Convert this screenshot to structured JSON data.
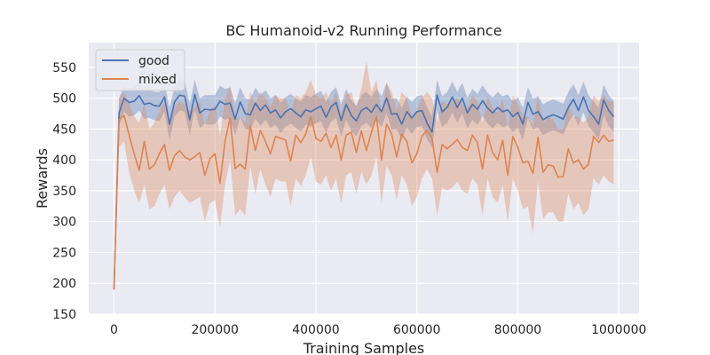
{
  "chart_data": {
    "type": "line",
    "title": "BC Humanoid-v2 Running Performance",
    "xlabel": "Training Samples",
    "ylabel": "Rewards",
    "xlim": [
      -50000,
      1040000
    ],
    "ylim": [
      150,
      590
    ],
    "xticks": [
      0,
      200000,
      400000,
      600000,
      800000,
      1000000
    ],
    "xtick_labels": [
      "0",
      "200000",
      "400000",
      "600000",
      "800000",
      "1000000"
    ],
    "yticks": [
      150,
      200,
      250,
      300,
      350,
      400,
      450,
      500,
      550
    ],
    "ytick_labels": [
      "150",
      "200",
      "250",
      "300",
      "350",
      "400",
      "450",
      "500",
      "550"
    ],
    "grid": true,
    "legend_position": "top-left",
    "x": [
      0,
      10000,
      20000,
      30000,
      40000,
      50000,
      60000,
      70000,
      80000,
      90000,
      100000,
      110000,
      120000,
      130000,
      140000,
      150000,
      160000,
      170000,
      180000,
      190000,
      200000,
      210000,
      220000,
      230000,
      240000,
      250000,
      260000,
      270000,
      280000,
      290000,
      300000,
      310000,
      320000,
      330000,
      340000,
      350000,
      360000,
      370000,
      380000,
      390000,
      400000,
      410000,
      420000,
      430000,
      440000,
      450000,
      460000,
      470000,
      480000,
      490000,
      500000,
      510000,
      520000,
      530000,
      540000,
      550000,
      560000,
      570000,
      580000,
      590000,
      600000,
      610000,
      620000,
      630000,
      640000,
      650000,
      660000,
      670000,
      680000,
      690000,
      700000,
      710000,
      720000,
      730000,
      740000,
      750000,
      760000,
      770000,
      780000,
      790000,
      800000,
      810000,
      820000,
      830000,
      840000,
      850000,
      860000,
      870000,
      880000,
      890000,
      900000,
      910000,
      920000,
      930000,
      940000,
      950000,
      960000,
      970000,
      980000,
      990000
    ],
    "series": [
      {
        "name": "good",
        "color": "#4c72b0",
        "values": [
          190,
          476,
          500,
          493,
          495,
          504,
          490,
          492,
          488,
          487,
          502,
          458,
          494,
          505,
          503,
          465,
          506,
          476,
          482,
          481,
          482,
          495,
          490,
          492,
          466,
          494,
          475,
          473,
          492,
          480,
          489,
          476,
          481,
          468,
          478,
          483,
          476,
          470,
          481,
          478,
          483,
          487,
          469,
          486,
          493,
          464,
          490,
          472,
          463,
          480,
          485,
          477,
          490,
          478,
          500,
          474,
          475,
          458,
          478,
          468,
          478,
          480,
          460,
          445,
          505,
          478,
          485,
          502,
          485,
          500,
          476,
          490,
          482,
          496,
          484,
          476,
          485,
          478,
          481,
          470,
          477,
          458,
          493,
          474,
          478,
          465,
          470,
          473,
          470,
          466,
          485,
          498,
          480,
          502,
          480,
          470,
          458,
          497,
          480,
          470
        ],
        "upper": [
          200,
          500,
          520,
          515,
          518,
          526,
          512,
          515,
          510,
          510,
          525,
          485,
          518,
          530,
          528,
          492,
          530,
          500,
          505,
          505,
          505,
          520,
          515,
          517,
          492,
          518,
          500,
          498,
          517,
          505,
          513,
          500,
          505,
          493,
          502,
          507,
          500,
          495,
          505,
          502,
          507,
          512,
          494,
          510,
          518,
          490,
          515,
          497,
          488,
          505,
          510,
          502,
          515,
          503,
          525,
          499,
          500,
          484,
          503,
          494,
          503,
          505,
          486,
          470,
          530,
          503,
          510,
          527,
          510,
          525,
          501,
          515,
          507,
          521,
          509,
          501,
          510,
          503,
          506,
          495,
          502,
          484,
          518,
          499,
          503,
          490,
          495,
          498,
          495,
          491,
          510,
          523,
          505,
          527,
          505,
          495,
          484,
          522,
          505,
          495
        ],
        "lower": [
          185,
          455,
          478,
          470,
          472,
          480,
          466,
          468,
          464,
          463,
          478,
          432,
          470,
          480,
          478,
          440,
          482,
          452,
          458,
          457,
          458,
          470,
          465,
          467,
          440,
          470,
          450,
          448,
          467,
          455,
          465,
          452,
          457,
          443,
          454,
          459,
          452,
          446,
          457,
          454,
          459,
          463,
          444,
          462,
          468,
          438,
          465,
          447,
          438,
          455,
          460,
          452,
          465,
          453,
          475,
          449,
          450,
          432,
          453,
          442,
          453,
          455,
          434,
          420,
          480,
          453,
          460,
          477,
          460,
          475,
          451,
          465,
          457,
          471,
          459,
          451,
          460,
          453,
          456,
          445,
          452,
          432,
          468,
          449,
          453,
          440,
          445,
          448,
          445,
          441,
          460,
          473,
          455,
          477,
          455,
          445,
          432,
          472,
          455,
          445
        ]
      },
      {
        "name": "mixed",
        "color": "#dd8452",
        "values": [
          190,
          465,
          472,
          440,
          410,
          383,
          430,
          385,
          392,
          410,
          425,
          383,
          407,
          415,
          405,
          400,
          405,
          412,
          375,
          402,
          410,
          362,
          430,
          468,
          386,
          393,
          385,
          455,
          415,
          448,
          430,
          410,
          438,
          435,
          432,
          398,
          440,
          428,
          442,
          470,
          435,
          430,
          443,
          420,
          440,
          400,
          440,
          445,
          412,
          447,
          415,
          445,
          470,
          400,
          458,
          442,
          405,
          442,
          430,
          395,
          410,
          438,
          448,
          435,
          380,
          425,
          418,
          425,
          433,
          420,
          415,
          440,
          428,
          385,
          440,
          412,
          400,
          432,
          375,
          438,
          420,
          395,
          398,
          378,
          437,
          380,
          392,
          390,
          372,
          373,
          418,
          395,
          400,
          385,
          393,
          438,
          428,
          440,
          430,
          432
        ],
        "upper": [
          200,
          500,
          510,
          490,
          470,
          460,
          490,
          450,
          460,
          480,
          495,
          460,
          485,
          495,
          490,
          480,
          485,
          495,
          455,
          480,
          490,
          440,
          500,
          520,
          465,
          470,
          460,
          510,
          490,
          510,
          500,
          485,
          505,
          500,
          500,
          475,
          505,
          500,
          510,
          530,
          505,
          500,
          510,
          490,
          510,
          475,
          505,
          510,
          485,
          515,
          560,
          510,
          530,
          475,
          525,
          510,
          480,
          510,
          500,
          470,
          480,
          500,
          510,
          500,
          460,
          495,
          490,
          495,
          500,
          490,
          485,
          505,
          495,
          460,
          505,
          485,
          475,
          500,
          450,
          505,
          490,
          470,
          470,
          455,
          505,
          460,
          470,
          465,
          450,
          450,
          490,
          470,
          470,
          460,
          470,
          505,
          495,
          505,
          495,
          495
        ],
        "lower": [
          180,
          420,
          430,
          380,
          350,
          330,
          360,
          320,
          325,
          345,
          360,
          320,
          340,
          350,
          340,
          330,
          335,
          340,
          300,
          330,
          335,
          290,
          360,
          400,
          310,
          320,
          310,
          390,
          345,
          385,
          360,
          340,
          370,
          365,
          365,
          325,
          370,
          358,
          375,
          405,
          365,
          360,
          375,
          350,
          370,
          330,
          375,
          380,
          345,
          380,
          360,
          375,
          405,
          330,
          390,
          375,
          335,
          375,
          360,
          325,
          340,
          370,
          385,
          370,
          310,
          355,
          350,
          355,
          365,
          350,
          345,
          370,
          360,
          310,
          370,
          340,
          330,
          360,
          300,
          370,
          350,
          320,
          325,
          280,
          365,
          305,
          315,
          315,
          300,
          300,
          345,
          320,
          330,
          310,
          320,
          370,
          360,
          375,
          365,
          360
        ]
      }
    ]
  }
}
